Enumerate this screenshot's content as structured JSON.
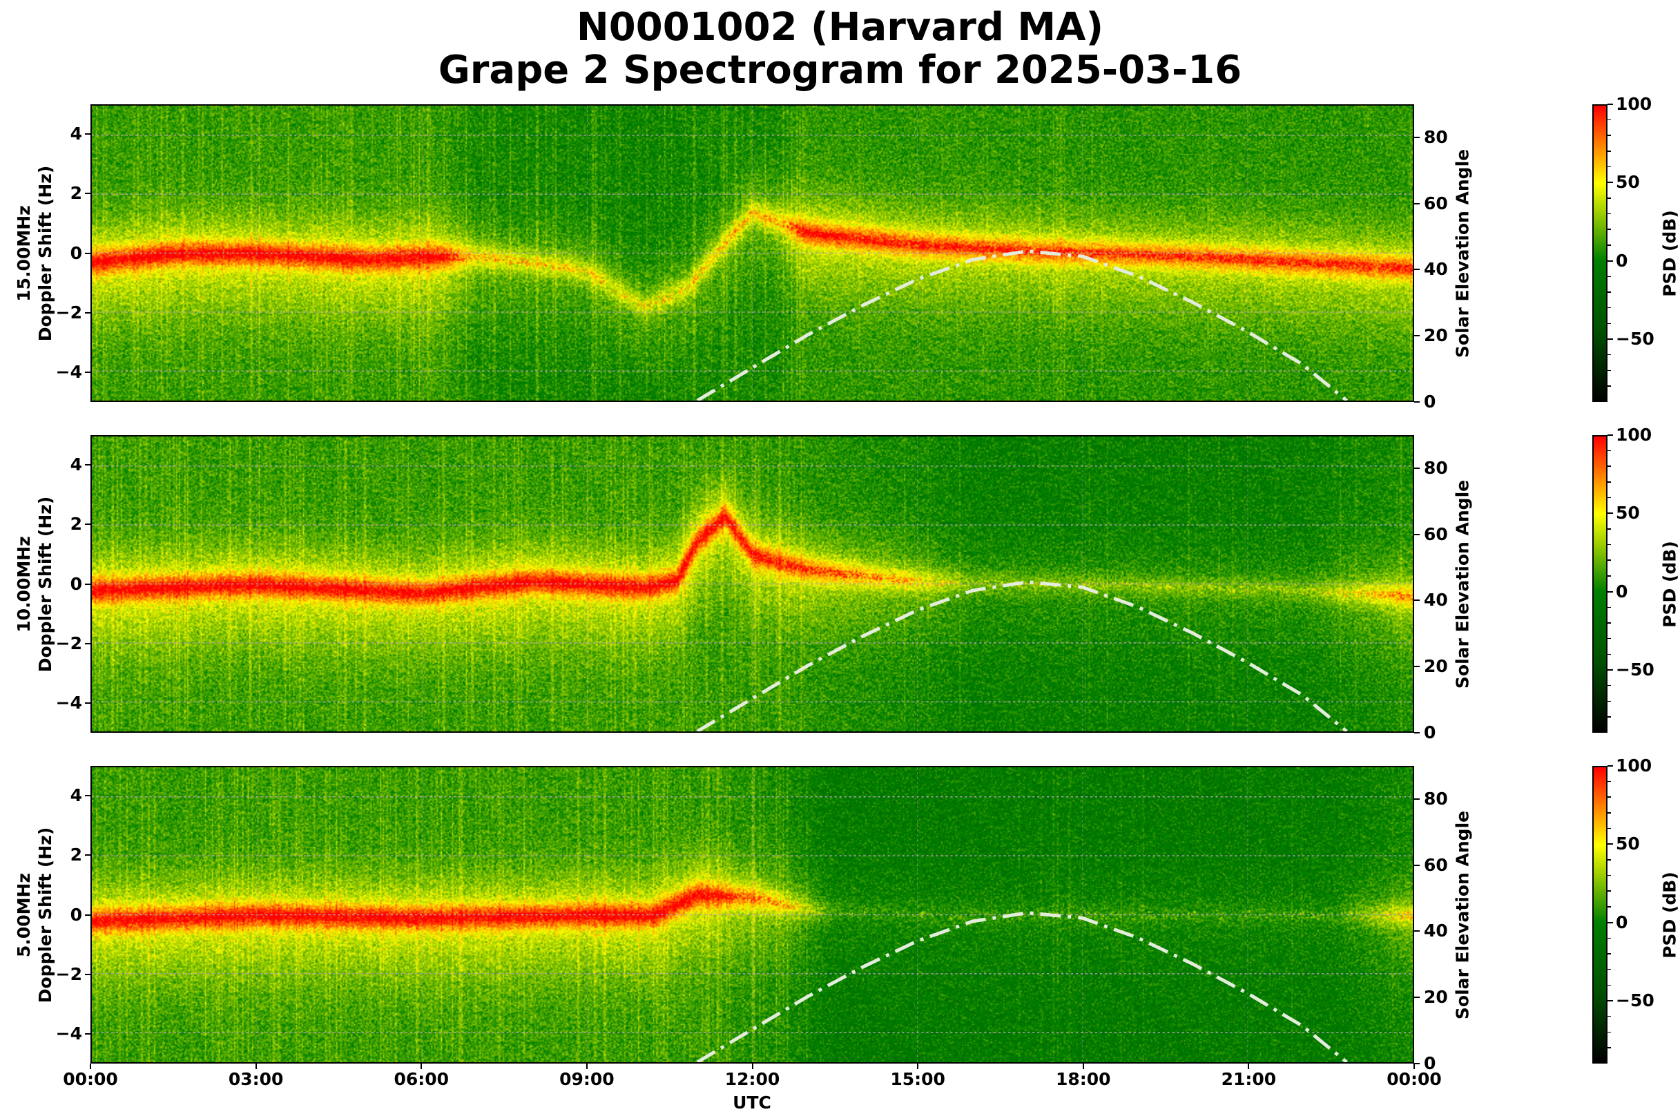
{
  "title": {
    "line1": "N0001002 (Harvard MA)",
    "line2": "Grape 2 Spectrogram for 2025-03-16"
  },
  "chart_data": {
    "type": "heatmap",
    "xlabel": "UTC",
    "x_range_hours": [
      0,
      24
    ],
    "x_ticks": [
      "00:00",
      "03:00",
      "06:00",
      "09:00",
      "12:00",
      "15:00",
      "18:00",
      "21:00",
      "00:00"
    ],
    "y_ticks": [
      "4",
      "2",
      "0",
      "−2",
      "−4"
    ],
    "y_tick_values": [
      4,
      2,
      0,
      -2,
      -4
    ],
    "y_range": [
      -5,
      5
    ],
    "y2_label": "Solar Elevation Angle",
    "y2_ticks": [
      "80",
      "60",
      "40",
      "20",
      "0"
    ],
    "y2_tick_values": [
      80,
      60,
      40,
      20,
      0
    ],
    "y2_range": [
      0,
      90
    ],
    "colorbar": {
      "label": "PSD (dB)",
      "range": [
        -90,
        100
      ],
      "ticks": [
        "100",
        "50",
        "0",
        "−50"
      ],
      "tick_values": [
        100,
        50,
        0,
        -50
      ],
      "colors": [
        "#000000",
        "#005000",
        "#008000",
        "#ffff00",
        "#ff0000"
      ],
      "stops": [
        -90,
        -45,
        0,
        50,
        100
      ]
    },
    "solar_elevation": {
      "hours": [
        11,
        12,
        13,
        14,
        15,
        16,
        17,
        18,
        19,
        20,
        21,
        22,
        22.8
      ],
      "degrees": [
        0,
        10,
        20,
        29,
        37,
        43,
        45.6,
        44,
        38,
        30,
        21,
        11,
        0
      ]
    },
    "panels": [
      {
        "frequency": "15.00MHz",
        "ylabel": "Doppler Shift (Hz)",
        "doppler_trace": {
          "hours": [
            0,
            1.5,
            3,
            5,
            6.3,
            7,
            8,
            9,
            10,
            10.8,
            11.5,
            12,
            13,
            15,
            17,
            20,
            24
          ],
          "hz": [
            -0.3,
            0,
            0,
            -0.2,
            -0.1,
            -0.1,
            -0.3,
            -0.6,
            -1.8,
            -1.2,
            0.4,
            1.4,
            0.7,
            0.3,
            0.1,
            -0.1,
            -0.5
          ]
        },
        "band_strength": {
          "hours": [
            0,
            6.3,
            7,
            10,
            12.5,
            13,
            18,
            24
          ],
          "level": [
            1.0,
            1.0,
            0.55,
            0.45,
            0.6,
            0.95,
            0.85,
            0.9
          ]
        }
      },
      {
        "frequency": "10.00MHz",
        "ylabel": "Doppler Shift (Hz)",
        "doppler_trace": {
          "hours": [
            0,
            3,
            6,
            8,
            10,
            10.6,
            11,
            11.5,
            12,
            13,
            15,
            18,
            22,
            24
          ],
          "hz": [
            -0.2,
            0,
            -0.3,
            0.1,
            -0.1,
            0.1,
            1.5,
            2.3,
            1.0,
            0.5,
            0.1,
            0,
            -0.2,
            -0.4
          ]
        },
        "band_strength": {
          "hours": [
            0,
            11,
            13,
            15,
            16,
            22,
            24
          ],
          "level": [
            1.0,
            1.0,
            0.85,
            0.55,
            0.3,
            0.3,
            0.7
          ]
        }
      },
      {
        "frequency": "5.00MHz",
        "ylabel": "Doppler Shift (Hz)",
        "doppler_trace": {
          "hours": [
            0,
            3,
            6,
            9,
            10.2,
            11,
            12,
            13,
            15,
            24
          ],
          "hz": [
            -0.2,
            0,
            -0.1,
            0,
            0,
            0.7,
            0.6,
            0.2,
            0,
            0
          ]
        },
        "band_strength": {
          "hours": [
            0,
            11,
            12.5,
            13.5,
            22.5,
            24
          ],
          "level": [
            1.0,
            1.0,
            0.6,
            0.15,
            0.15,
            0.55
          ]
        }
      }
    ]
  }
}
